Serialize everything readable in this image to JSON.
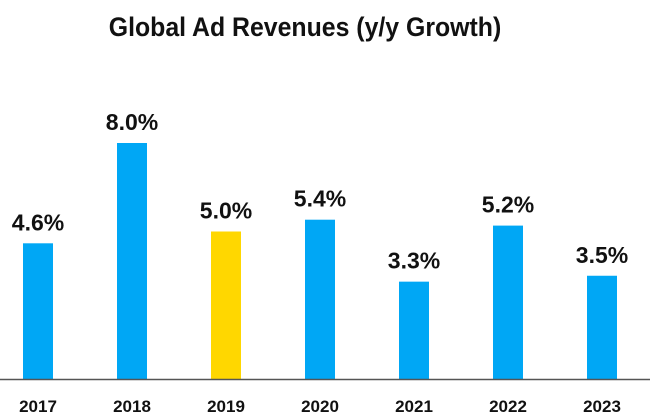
{
  "chart_data": {
    "type": "bar",
    "title": "Global Ad Revenues (y/y Growth)",
    "categories": [
      "2017",
      "2018",
      "2019",
      "2020",
      "2021",
      "2022",
      "2023"
    ],
    "values": [
      4.6,
      8.0,
      5.0,
      5.4,
      3.3,
      5.2,
      3.5
    ],
    "data_labels": [
      "4.6%",
      "8.0%",
      "5.0%",
      "5.4%",
      "3.3%",
      "5.2%",
      "3.5%"
    ],
    "highlight_category": "2019",
    "xlabel": "",
    "ylabel": "",
    "ylim": [
      0,
      8
    ],
    "grid": false,
    "colors": {
      "bar": "#00A7F5",
      "highlight": "#FFD700",
      "axis": "#555555",
      "text": "#111111"
    }
  }
}
